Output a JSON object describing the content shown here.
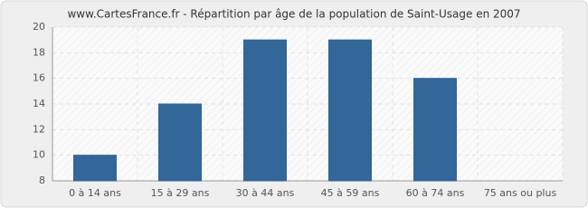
{
  "chart_data": {
    "type": "bar",
    "title": "www.CartesFrance.fr - Répartition par âge de la population de Saint-Usage en 2007",
    "categories": [
      "0 à 14 ans",
      "15 à 29 ans",
      "30 à 44 ans",
      "45 à 59 ans",
      "60 à 74 ans",
      "75 ans ou plus"
    ],
    "values": [
      10,
      14,
      19,
      19,
      16,
      8
    ],
    "color": "#336699",
    "ylim": [
      8,
      20
    ],
    "yticks": [
      8,
      10,
      12,
      14,
      16,
      18,
      20
    ],
    "grid": true
  }
}
